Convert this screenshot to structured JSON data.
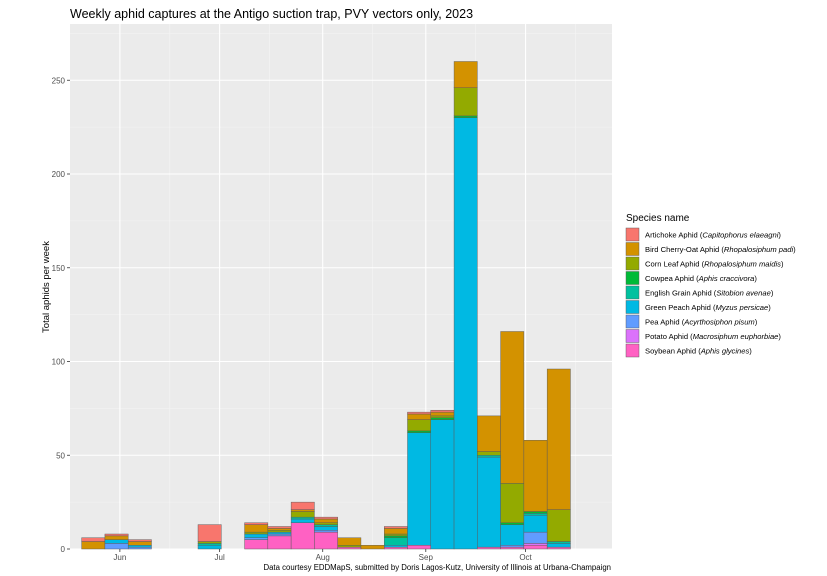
{
  "chart_data": {
    "type": "bar",
    "stacked": true,
    "title": "Weekly aphid captures at the Antigo suction trap, PVY vectors only, 2023",
    "ylabel": "Total aphids per week",
    "xlabel": "",
    "caption": "Data courtesy EDDMapS, submitted by Doris Lagos-Kutz, University of Illinois at Urbana-Champaign",
    "ylim": [
      0,
      280
    ],
    "yticks": [
      0,
      50,
      100,
      150,
      200,
      250
    ],
    "xlim": [
      "2023-05-17",
      "2023-10-27"
    ],
    "xticks": [
      {
        "date": "2023-06-01",
        "label": "Jun"
      },
      {
        "date": "2023-07-01",
        "label": "Jul"
      },
      {
        "date": "2023-08-01",
        "label": "Aug"
      },
      {
        "date": "2023-09-01",
        "label": "Sep"
      },
      {
        "date": "2023-10-01",
        "label": "Oct"
      }
    ],
    "grid": true,
    "background": "#ebebeb",
    "legend": {
      "title": "Species name",
      "position": "right"
    },
    "weeks": [
      "2023-05-24",
      "2023-05-31",
      "2023-06-07",
      "2023-06-14",
      "2023-06-21",
      "2023-06-28",
      "2023-07-05",
      "2023-07-12",
      "2023-07-19",
      "2023-07-26",
      "2023-08-02",
      "2023-08-09",
      "2023-08-16",
      "2023-08-23",
      "2023-08-30",
      "2023-09-06",
      "2023-09-13",
      "2023-09-20",
      "2023-09-27",
      "2023-10-04",
      "2023-10-11"
    ],
    "series": [
      {
        "name": "Artichoke Aphid",
        "latin": "Capitophorus elaeagni",
        "color": "#F8766D",
        "values": [
          2,
          1,
          1,
          0,
          0,
          9,
          0,
          1,
          1,
          4,
          1,
          0,
          0,
          1,
          1,
          1,
          0,
          0,
          0,
          0,
          0
        ]
      },
      {
        "name": "Bird Cherry-Oat Aphid",
        "latin": "Rhopalosiphum padi",
        "color": "#D39200",
        "values": [
          4,
          2,
          2,
          0,
          0,
          0,
          0,
          4,
          1,
          1,
          2,
          4,
          2,
          3,
          3,
          2,
          14,
          19,
          81,
          38,
          75
        ]
      },
      {
        "name": "Corn Leaf Aphid",
        "latin": "Rhopalosiphum maidis",
        "color": "#93AA00",
        "values": [
          0,
          0,
          0,
          0,
          0,
          1,
          0,
          1,
          1,
          3,
          1,
          1,
          0,
          1,
          6,
          1,
          15,
          2,
          21,
          0,
          17
        ]
      },
      {
        "name": "Cowpea Aphid",
        "latin": "Aphis craccivora",
        "color": "#00BA38",
        "values": [
          0,
          0,
          0,
          0,
          0,
          0,
          0,
          0,
          0,
          0,
          0,
          0,
          0,
          1,
          1,
          1,
          1,
          0,
          1,
          1,
          0
        ]
      },
      {
        "name": "English Grain Aphid",
        "latin": "Sitobion avenae",
        "color": "#00C19F",
        "values": [
          0,
          0,
          0,
          0,
          0,
          1,
          0,
          0,
          0,
          1,
          1,
          0,
          0,
          4,
          0,
          0,
          0,
          1,
          0,
          1,
          1
        ]
      },
      {
        "name": "Green Peach Aphid",
        "latin": "Myzus persicae",
        "color": "#00B9E3",
        "values": [
          0,
          2,
          1,
          0,
          0,
          2,
          0,
          2,
          1,
          2,
          2,
          0,
          0,
          1,
          60,
          69,
          230,
          48,
          11,
          9,
          2
        ]
      },
      {
        "name": "Pea Aphid",
        "latin": "Acyrthosiphon pisum",
        "color": "#619CFF",
        "values": [
          0,
          3,
          1,
          0,
          0,
          0,
          0,
          1,
          1,
          0,
          1,
          0,
          0,
          0,
          0,
          0,
          0,
          0,
          1,
          6,
          0
        ]
      },
      {
        "name": "Potato Aphid",
        "latin": "Macrosiphum euphorbiae",
        "color": "#DB72FB",
        "values": [
          0,
          0,
          0,
          0,
          0,
          0,
          0,
          0,
          0,
          0,
          0,
          0,
          0,
          0,
          0,
          0,
          0,
          0,
          0,
          1,
          0
        ]
      },
      {
        "name": "Soybean Aphid",
        "latin": "Aphis glycines",
        "color": "#FF61C3",
        "values": [
          0,
          0,
          0,
          0,
          0,
          0,
          0,
          5,
          7,
          14,
          9,
          1,
          0,
          1,
          2,
          0,
          0,
          1,
          1,
          2,
          1
        ]
      }
    ]
  }
}
